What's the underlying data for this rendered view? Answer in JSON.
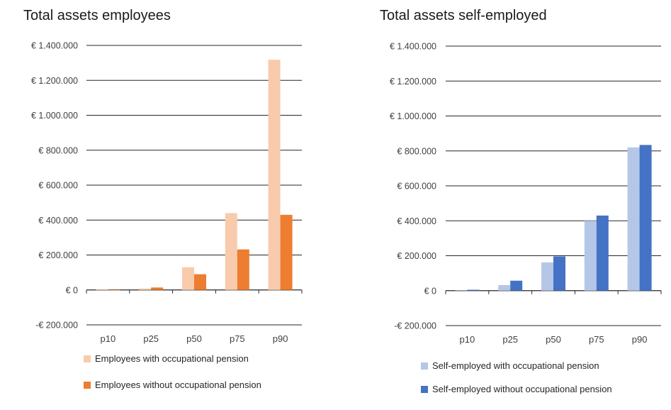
{
  "chart_data": [
    {
      "type": "bar",
      "title": "Total assets employees",
      "categories": [
        "p10",
        "p25",
        "p50",
        "p75",
        "p90"
      ],
      "ylim": [
        -200000,
        1400000
      ],
      "yticks": [
        -200000,
        0,
        200000,
        400000,
        600000,
        800000,
        1000000,
        1200000,
        1400000
      ],
      "ytick_labels": [
        "-€ 200.000",
        "€ 0",
        "€ 200.000",
        "€ 400.000",
        "€ 600.000",
        "€ 800.000",
        "€ 1.000.000",
        "€ 1.200.000",
        "€ 1.400.000"
      ],
      "grid": true,
      "legend_position": "bottom",
      "series": [
        {
          "name": "Employees with occupational pension",
          "color": "#f8cbad",
          "values": [
            3000,
            8000,
            130000,
            440000,
            1318000
          ]
        },
        {
          "name": "Employees without occupational pension",
          "color": "#ed7d31",
          "values": [
            -3000,
            14000,
            90000,
            232000,
            430000
          ]
        }
      ]
    },
    {
      "type": "bar",
      "title": "Total assets self-employed",
      "categories": [
        "p10",
        "p25",
        "p50",
        "p75",
        "p90"
      ],
      "ylim": [
        -200000,
        1400000
      ],
      "yticks": [
        -200000,
        0,
        200000,
        400000,
        600000,
        800000,
        1000000,
        1200000,
        1400000
      ],
      "ytick_labels": [
        "-€ 200.000",
        "€ 0",
        "€ 200.000",
        "€ 400.000",
        "€ 600.000",
        "€ 800.000",
        "€ 1.000.000",
        "€ 1.200.000",
        "€ 1.400.000"
      ],
      "grid": true,
      "legend_position": "bottom",
      "series": [
        {
          "name": "Self-employed with occupational pension",
          "color": "#b4c7e7",
          "values": [
            1000,
            32000,
            162000,
            400000,
            820000
          ]
        },
        {
          "name": "Self-employed without occupational pension",
          "color": "#4472c4",
          "values": [
            5000,
            57000,
            196000,
            430000,
            834000
          ]
        }
      ]
    }
  ]
}
